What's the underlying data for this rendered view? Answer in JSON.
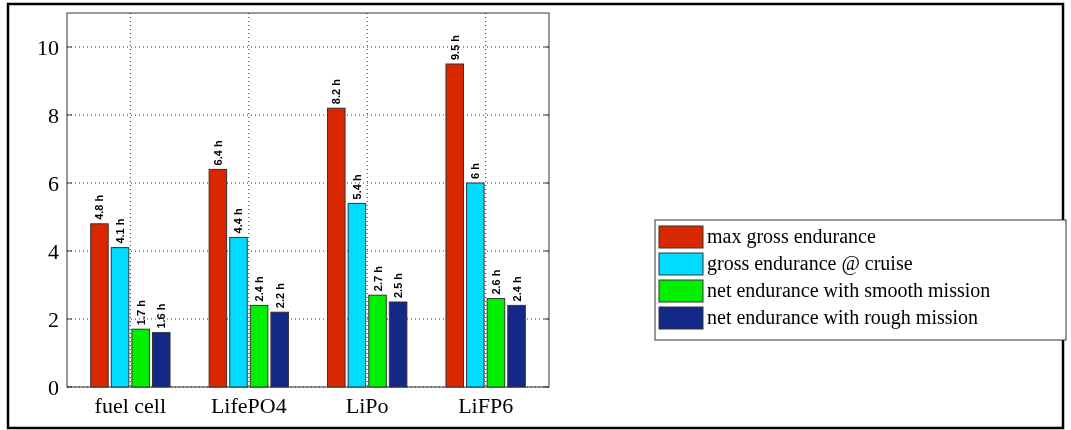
{
  "chart_data": {
    "type": "bar",
    "categories": [
      "fuel cell",
      "LifePO4",
      "LiPo",
      "LiFP6"
    ],
    "series": [
      {
        "name": "max gross endurance",
        "color": "#d92800",
        "values": [
          4.8,
          6.4,
          8.2,
          9.5
        ],
        "value_labels": [
          "4.8 h",
          "6.4 h",
          "8.2 h",
          "9.5 h"
        ]
      },
      {
        "name": "gross endurance @ cruise",
        "color": "#00dcff",
        "values": [
          4.1,
          4.4,
          5.4,
          6
        ],
        "value_labels": [
          "4.1 h",
          "4.4 h",
          "5.4 h",
          "6 h"
        ]
      },
      {
        "name": "net endurance with smooth mission",
        "color": "#00f000",
        "values": [
          1.7,
          2.4,
          2.7,
          2.6
        ],
        "value_labels": [
          "1.7 h",
          "2.4 h",
          "2.7 h",
          "2.6 h"
        ]
      },
      {
        "name": "net endurance with rough mission",
        "color": "#142888",
        "values": [
          1.6,
          2.2,
          2.5,
          2.4
        ],
        "value_labels": [
          "1.6 h",
          "2.2 h",
          "2.5 h",
          "2.4 h"
        ]
      }
    ],
    "ylim": [
      0,
      11
    ],
    "yticks": [
      0,
      2,
      4,
      6,
      8,
      10
    ],
    "grid": true,
    "legend": "right"
  }
}
